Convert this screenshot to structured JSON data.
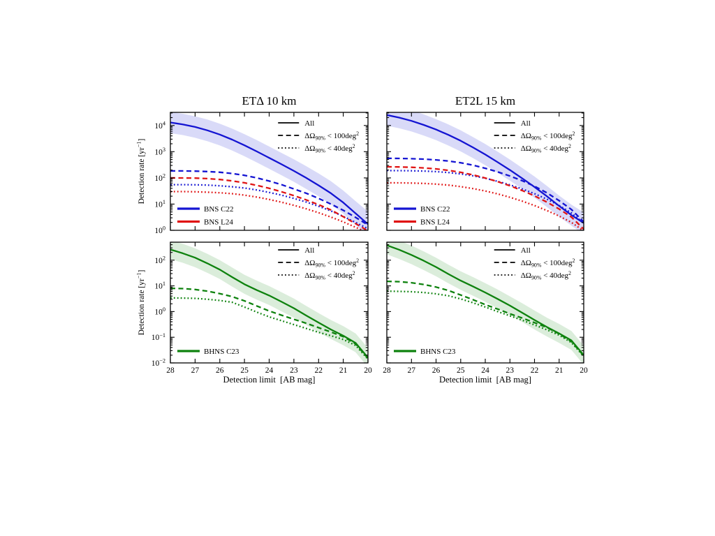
{
  "figure": {
    "description": "Kilonova counterpart detection rates versus survey detection limit for two Einstein Telescope configurations",
    "background": "#ffffff",
    "axis_color": "#000000",
    "colors": {
      "bns_c22": "#1414d2",
      "bns_l24": "#e01414",
      "bhns_c23": "#0e820e",
      "band_blue": "#5055e0",
      "band_green": "#3a9a3a"
    }
  },
  "chart_data": [
    {
      "id": "et-triangle-bns",
      "type": "line",
      "title": "ETΔ 10 km",
      "xlabel": "",
      "ylabel": "Detection rate [yr^{−1}]",
      "x_range": [
        28,
        20
      ],
      "y_exp_range": [
        0,
        4.5
      ],
      "x_ticks": [
        28,
        27,
        26,
        25,
        24,
        23,
        22,
        21,
        20
      ],
      "show_x_tick_labels": false,
      "y_ticks": [
        {
          "exp": 0,
          "label": "10^{0}"
        },
        {
          "exp": 1,
          "label": "10^{1}"
        },
        {
          "exp": 2,
          "label": "10^{2}"
        },
        {
          "exp": 3,
          "label": "10^{3}"
        },
        {
          "exp": 4,
          "label": "10^{4}"
        }
      ],
      "show_y_tick_labels": true,
      "x": [
        28,
        27.5,
        27,
        26.5,
        26,
        25.5,
        25,
        24.5,
        24,
        23.5,
        23,
        22.5,
        22,
        21.5,
        21,
        20.5,
        20
      ],
      "series": [
        {
          "name": "BNS C22 All",
          "color": "#1414d2",
          "style": "solid",
          "values": [
            13000,
            11000,
            8800,
            6500,
            4500,
            2900,
            1750,
            1020,
            580,
            330,
            185,
            100,
            52,
            26,
            11.5,
            4.4,
            1.7
          ],
          "band": {
            "upper": [
              33000,
              28000,
              22500,
              16800,
              11700,
              7600,
              4650,
              2750,
              1580,
              900,
              510,
              280,
              148,
              75,
              33,
              13,
              5.2
            ],
            "lower": [
              5100,
              4300,
              3400,
              2500,
              1730,
              1110,
              670,
              390,
              222,
              126,
              71,
              38,
              19.8,
              9.8,
              4.3,
              1.6,
              0.6
            ],
            "fill": "#5055e0",
            "opacity": 0.22
          }
        },
        {
          "name": "BNS C22 dOmega90 < 100deg2",
          "color": "#1414d2",
          "style": "dashed",
          "values": [
            185,
            184,
            181,
            175,
            164,
            147,
            125,
            100,
            76,
            55,
            38,
            26,
            16.5,
            10,
            5.8,
            3.1,
            1.6
          ]
        },
        {
          "name": "BNS C22 dOmega90 < 40deg2",
          "color": "#1414d2",
          "style": "dotted",
          "values": [
            55,
            55,
            54.5,
            53,
            50,
            46,
            41,
            34.5,
            28,
            22,
            16.5,
            12,
            8.3,
            5.5,
            3.4,
            2.0,
            1.15
          ]
        },
        {
          "name": "BNS L24 dOmega90 < 100deg2",
          "color": "#e01414",
          "style": "dashed",
          "values": [
            100,
            99.5,
            98,
            94,
            87,
            77,
            65,
            52,
            40,
            29.5,
            21,
            14.5,
            9.5,
            6.0,
            3.3,
            1.8,
            0.95
          ]
        },
        {
          "name": "BNS L24 dOmega90 < 40deg2",
          "color": "#e01414",
          "style": "dotted",
          "values": [
            30,
            30,
            29.5,
            28.5,
            27,
            25,
            22,
            18.5,
            15,
            11.8,
            9.0,
            6.6,
            4.7,
            3.2,
            2.1,
            1.3,
            0.8
          ]
        }
      ],
      "style_legend": {
        "position": "upper-right",
        "items": [
          {
            "label": "All",
            "style": "solid"
          },
          {
            "label": "ΔΩ_{90%} < 100deg^{2}",
            "style": "dashed"
          },
          {
            "label": "ΔΩ_{90%} < 40deg^{2}",
            "style": "dotted"
          }
        ]
      },
      "series_legend": {
        "position": "lower-left",
        "items": [
          {
            "label": "BNS C22",
            "color": "#1414d2"
          },
          {
            "label": "BNS L24",
            "color": "#e01414"
          }
        ]
      }
    },
    {
      "id": "et-2l-bns",
      "type": "line",
      "title": "ET2L 15 km",
      "xlabel": "",
      "ylabel": "",
      "x_range": [
        28,
        20
      ],
      "y_exp_range": [
        0,
        4.5
      ],
      "x_ticks": [
        28,
        27,
        26,
        25,
        24,
        23,
        22,
        21,
        20
      ],
      "show_x_tick_labels": false,
      "y_ticks": [
        {
          "exp": 0,
          "label": "10^{0}"
        },
        {
          "exp": 1,
          "label": "10^{1}"
        },
        {
          "exp": 2,
          "label": "10^{2}"
        },
        {
          "exp": 3,
          "label": "10^{3}"
        },
        {
          "exp": 4,
          "label": "10^{4}"
        }
      ],
      "show_y_tick_labels": false,
      "x": [
        28,
        27.5,
        27,
        26.5,
        26,
        25.5,
        25,
        24.5,
        24,
        23.5,
        23,
        22.5,
        22,
        21.5,
        21,
        20.5,
        20
      ],
      "series": [
        {
          "name": "BNS C22 All",
          "color": "#1414d2",
          "style": "solid",
          "values": [
            25000,
            20000,
            15000,
            10500,
            7000,
            4400,
            2600,
            1450,
            780,
            400,
            200,
            96,
            45,
            20,
            8.5,
            3.8,
            1.9
          ],
          "band": {
            "upper": [
              64000,
              51000,
              38000,
              26500,
              17500,
              11000,
              6500,
              3600,
              1950,
              1000,
              500,
              240,
              113,
              50,
              21,
              9.5,
              4.8
            ],
            "lower": [
              9800,
              7800,
              5900,
              4100,
              2750,
              1720,
              1020,
              570,
              305,
              157,
              78,
              38,
              17.6,
              7.8,
              3.3,
              1.5,
              0.7
            ],
            "fill": "#5055e0",
            "opacity": 0.22
          }
        },
        {
          "name": "BNS C22 dOmega90 < 100deg2",
          "color": "#1414d2",
          "style": "dashed",
          "values": [
            560,
            553,
            540,
            520,
            487,
            440,
            378,
            305,
            233,
            170,
            118,
            78,
            48,
            27,
            13.5,
            6.2,
            2.1
          ]
        },
        {
          "name": "BNS C22 dOmega90 < 40deg2",
          "color": "#1414d2",
          "style": "dotted",
          "values": [
            190,
            189,
            187,
            182,
            173,
            160,
            142,
            120,
            97,
            74,
            54,
            38,
            25,
            15.5,
            8.8,
            4.6,
            1.85
          ]
        },
        {
          "name": "BNS L24 dOmega90 < 100deg2",
          "color": "#e01414",
          "style": "dashed",
          "values": [
            265,
            261,
            253,
            240,
            220,
            194,
            163,
            130,
            99,
            72,
            50,
            33,
            20.5,
            12,
            6.5,
            3.2,
            1.1
          ]
        },
        {
          "name": "BNS L24 dOmega90 < 40deg2",
          "color": "#e01414",
          "style": "dotted",
          "values": [
            65,
            64.5,
            63.5,
            61.5,
            58,
            53,
            46.5,
            39,
            31.5,
            24.5,
            18.2,
            13,
            8.8,
            5.7,
            3.5,
            2.0,
            0.95
          ]
        }
      ],
      "style_legend": {
        "position": "upper-right",
        "items": [
          {
            "label": "All",
            "style": "solid"
          },
          {
            "label": "ΔΩ_{90%} < 100deg^{2}",
            "style": "dashed"
          },
          {
            "label": "ΔΩ_{90%} < 40deg^{2}",
            "style": "dotted"
          }
        ]
      },
      "series_legend": {
        "position": "lower-left",
        "items": [
          {
            "label": "BNS C22",
            "color": "#1414d2"
          },
          {
            "label": "BNS L24",
            "color": "#e01414"
          }
        ]
      }
    },
    {
      "id": "et-triangle-bhns",
      "type": "line",
      "title": "",
      "xlabel": "Detection limit [AB mag]",
      "ylabel": "Detection rate [yr^{−1}]",
      "x_range": [
        28,
        20
      ],
      "y_exp_range": [
        -2,
        2.7
      ],
      "x_ticks": [
        28,
        27,
        26,
        25,
        24,
        23,
        22,
        21,
        20
      ],
      "show_x_tick_labels": true,
      "y_ticks": [
        {
          "exp": -2,
          "label": "10^{−2}"
        },
        {
          "exp": -1,
          "label": "10^{−1}"
        },
        {
          "exp": 0,
          "label": "10^{0}"
        },
        {
          "exp": 1,
          "label": "10^{1}"
        },
        {
          "exp": 2,
          "label": "10^{2}"
        }
      ],
      "show_y_tick_labels": true,
      "x": [
        28,
        27.5,
        27,
        26.5,
        26,
        25.5,
        25,
        24.5,
        24,
        23.5,
        23,
        22.5,
        22,
        21.5,
        21,
        20.5,
        20
      ],
      "series": [
        {
          "name": "BHNS C23 All",
          "color": "#0e820e",
          "style": "solid",
          "values": [
            260,
            185,
            125,
            75,
            43,
            22,
            11.5,
            6.8,
            4.2,
            2.4,
            1.35,
            0.7,
            0.37,
            0.2,
            0.115,
            0.06,
            0.016
          ],
          "band": {
            "upper": [
              600,
              430,
              290,
              175,
              100,
              52,
              27,
              16,
              9.8,
              5.6,
              3.2,
              1.65,
              0.87,
              0.47,
              0.27,
              0.14,
              0.038
            ],
            "lower": [
              110,
              79,
              53,
              32,
              18.5,
              9.4,
              4.9,
              2.9,
              1.8,
              1.02,
              0.58,
              0.3,
              0.157,
              0.085,
              0.049,
              0.026,
              0.0068
            ],
            "fill": "#3a9a3a",
            "opacity": 0.18
          }
        },
        {
          "name": "BHNS C23 dOmega90 < 100deg2",
          "color": "#0e820e",
          "style": "dashed",
          "values": [
            8.0,
            7.8,
            7.2,
            6.2,
            5.0,
            3.8,
            2.6,
            1.65,
            1.05,
            0.72,
            0.5,
            0.35,
            0.235,
            0.16,
            0.105,
            0.055,
            0.015
          ]
        },
        {
          "name": "BHNS C23 dOmega90 < 40deg2",
          "color": "#0e820e",
          "style": "dotted",
          "values": [
            3.4,
            3.35,
            3.25,
            3.0,
            2.7,
            2.3,
            1.5,
            0.95,
            0.62,
            0.44,
            0.31,
            0.22,
            0.155,
            0.115,
            0.082,
            0.048,
            0.014
          ]
        }
      ],
      "style_legend": {
        "position": "upper-right",
        "items": [
          {
            "label": "All",
            "style": "solid"
          },
          {
            "label": "ΔΩ_{90%} < 100deg^{2}",
            "style": "dashed"
          },
          {
            "label": "ΔΩ_{90%} < 40deg^{2}",
            "style": "dotted"
          }
        ]
      },
      "series_legend": {
        "position": "lower-left",
        "items": [
          {
            "label": "BHNS C23",
            "color": "#0e820e"
          }
        ]
      }
    },
    {
      "id": "et-2l-bhns",
      "type": "line",
      "title": "",
      "xlabel": "Detection limit [AB mag]",
      "ylabel": "",
      "x_range": [
        28,
        20
      ],
      "y_exp_range": [
        -2,
        2.7
      ],
      "x_ticks": [
        28,
        27,
        26,
        25,
        24,
        23,
        22,
        21,
        20
      ],
      "show_x_tick_labels": true,
      "y_ticks": [
        {
          "exp": -2,
          "label": "10^{−2}"
        },
        {
          "exp": -1,
          "label": "10^{−1}"
        },
        {
          "exp": 0,
          "label": "10^{0}"
        },
        {
          "exp": 1,
          "label": "10^{1}"
        },
        {
          "exp": 2,
          "label": "10^{2}"
        }
      ],
      "show_y_tick_labels": false,
      "x": [
        28,
        27.5,
        27,
        26.5,
        26,
        25.5,
        25,
        24.5,
        24,
        23.5,
        23,
        22.5,
        22,
        21.5,
        21,
        20.5,
        20
      ],
      "series": [
        {
          "name": "BHNS C23 All",
          "color": "#0e820e",
          "style": "solid",
          "values": [
            380,
            255,
            160,
            95,
            54,
            29,
            16,
            9.5,
            5.5,
            3.1,
            1.7,
            0.9,
            0.47,
            0.25,
            0.14,
            0.075,
            0.02
          ],
          "band": {
            "upper": [
              860,
              580,
              370,
              220,
              125,
              67,
              37,
              22,
              12.7,
              7.2,
              3.9,
              2.1,
              1.1,
              0.58,
              0.33,
              0.175,
              0.047
            ],
            "lower": [
              168,
              112,
              70,
              41,
              23.5,
              12.6,
              7.0,
              4.1,
              2.4,
              1.34,
              0.74,
              0.39,
              0.2,
              0.108,
              0.06,
              0.032,
              0.0085
            ],
            "fill": "#3a9a3a",
            "opacity": 0.18
          }
        },
        {
          "name": "BHNS C23 dOmega90 < 100deg2",
          "color": "#0e820e",
          "style": "dashed",
          "values": [
            15,
            14.5,
            13.2,
            11.3,
            9.0,
            6.6,
            4.4,
            2.9,
            1.85,
            1.25,
            0.82,
            0.56,
            0.37,
            0.24,
            0.135,
            0.068,
            0.019
          ]
        },
        {
          "name": "BHNS C23 dOmega90 < 40deg2",
          "color": "#0e820e",
          "style": "dotted",
          "values": [
            6.2,
            6.1,
            5.9,
            5.5,
            4.9,
            4.1,
            3.1,
            2.2,
            1.5,
            1.0,
            0.68,
            0.46,
            0.3,
            0.195,
            0.12,
            0.062,
            0.018
          ]
        }
      ],
      "style_legend": {
        "position": "upper-right",
        "items": [
          {
            "label": "All",
            "style": "solid"
          },
          {
            "label": "ΔΩ_{90%} < 100deg^{2}",
            "style": "dashed"
          },
          {
            "label": "ΔΩ_{90%} < 40deg^{2}",
            "style": "dotted"
          }
        ]
      },
      "series_legend": {
        "position": "lower-left",
        "items": [
          {
            "label": "BHNS C23",
            "color": "#0e820e"
          }
        ]
      }
    }
  ]
}
